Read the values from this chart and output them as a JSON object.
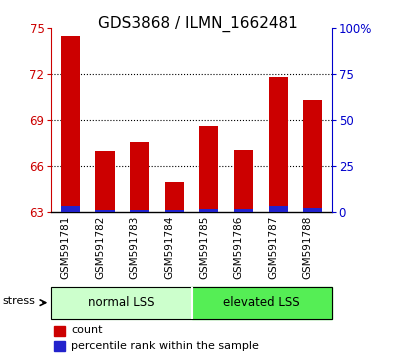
{
  "title": "GDS3868 / ILMN_1662481",
  "categories": [
    "GSM591781",
    "GSM591782",
    "GSM591783",
    "GSM591784",
    "GSM591785",
    "GSM591786",
    "GSM591787",
    "GSM591788"
  ],
  "count_values": [
    74.5,
    67.0,
    67.6,
    65.0,
    68.6,
    67.1,
    71.8,
    70.3
  ],
  "percentile_values": [
    3.5,
    1.5,
    1.5,
    1.5,
    2.0,
    2.0,
    3.5,
    2.5
  ],
  "y_min": 63,
  "y_max": 75,
  "y_ticks": [
    63,
    66,
    69,
    72,
    75
  ],
  "right_y_ticks": [
    0,
    25,
    50,
    75,
    100
  ],
  "right_y_labels": [
    "0",
    "25",
    "50",
    "75",
    "100%"
  ],
  "bar_color_red": "#cc0000",
  "bar_color_blue": "#2222cc",
  "group1_label": "normal LSS",
  "group2_label": "elevated LSS",
  "group1_bg": "#ccffcc",
  "group2_bg": "#55ee55",
  "stress_label": "stress",
  "legend_count": "count",
  "legend_percentile": "percentile rank within the sample",
  "title_fontsize": 11,
  "axis_color_red": "#cc0000",
  "axis_color_blue": "#0000cc",
  "bar_width": 0.55,
  "grid_color": "black",
  "grid_linestyle": "dotted",
  "grid_linewidth": 0.8
}
